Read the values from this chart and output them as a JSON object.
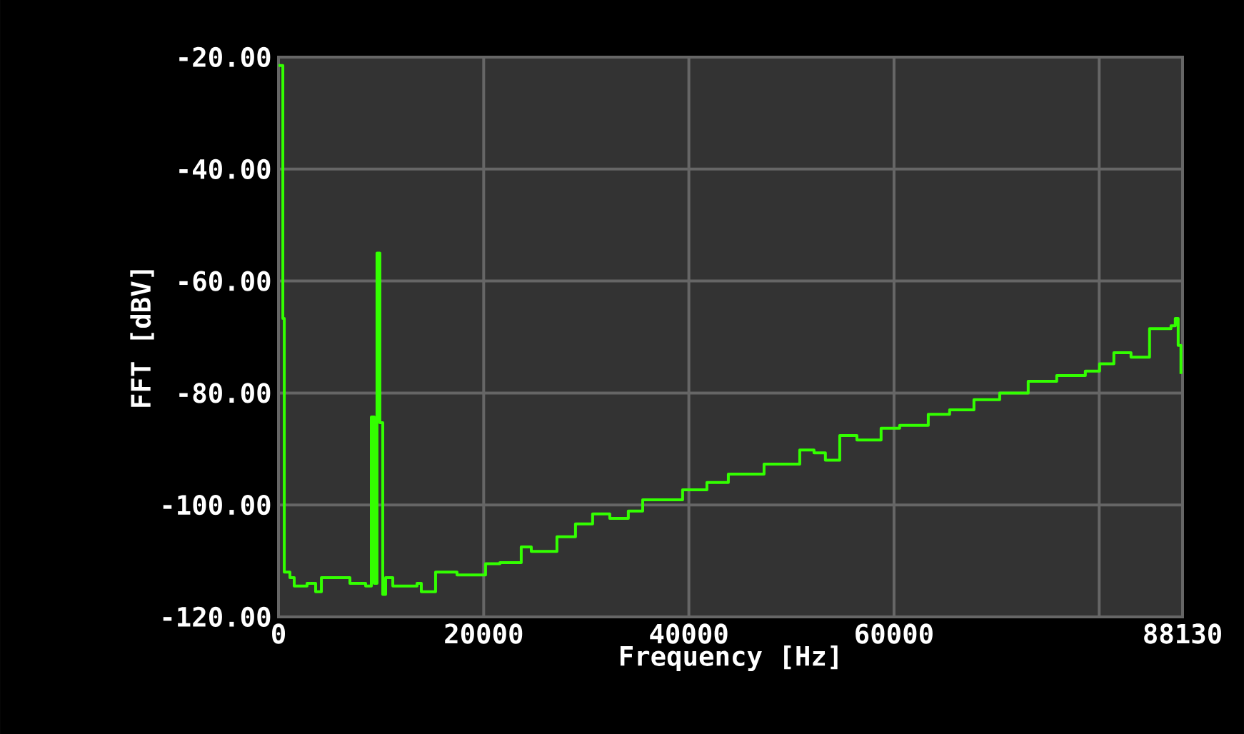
{
  "chart_data": {
    "type": "step",
    "xlabel": "Frequency [Hz]",
    "ylabel": "FFT [dBV]",
    "xlim": [
      0,
      88130
    ],
    "ylim": [
      -120,
      -20
    ],
    "xticks": [
      0,
      20000,
      40000,
      60000,
      {
        "value": 80000,
        "label": null
      },
      88130
    ],
    "yticks": [
      {
        "value": -120,
        "label": "-120.00"
      },
      {
        "value": -100,
        "label": "-100.00"
      },
      {
        "value": -80,
        "label": "-80.00"
      },
      {
        "value": -60,
        "label": "-60.00"
      },
      {
        "value": -40,
        "label": "-40.00"
      },
      {
        "value": -20,
        "label": "-20.00"
      }
    ],
    "grid": true,
    "marker": "none",
    "line_style": "solid",
    "series": [
      {
        "color": "#33ff00",
        "x": [
          0,
          420,
          560,
          1110,
          1530,
          2780,
          3620,
          4180,
          5570,
          6960,
          8490,
          9050,
          9330,
          9600,
          9880,
          10160,
          10440,
          11140,
          13500,
          13920,
          15310,
          17400,
          20180,
          21580,
          23660,
          24640,
          27140,
          28950,
          30620,
          32290,
          34100,
          35500,
          36890,
          39390,
          41760,
          43850,
          47330,
          50810,
          52200,
          53310,
          54710,
          56380,
          58740,
          60550,
          63340,
          65420,
          67790,
          70300,
          73080,
          75860,
          78650,
          80040,
          81430,
          83100,
          84910,
          87000,
          87420,
          87700,
          87970
        ],
        "values": [
          -21.5,
          -66.7,
          -112,
          -113,
          -114.5,
          -114,
          -115.5,
          -113,
          -113,
          -114,
          -114.5,
          -84.3,
          -114,
          -55,
          -85.3,
          -116,
          -113,
          -114.5,
          -114,
          -115.5,
          -112,
          -112.5,
          -110.5,
          -110.3,
          -107.5,
          -108.3,
          -105.7,
          -103.4,
          -101.6,
          -102.4,
          -101.1,
          -99.1,
          -99.1,
          -97.3,
          -96,
          -94.5,
          -92.7,
          -90.2,
          -90.7,
          -92,
          -87.6,
          -88.4,
          -86.3,
          -85.8,
          -83.8,
          -83,
          -81.2,
          -80,
          -77.9,
          -76.9,
          -76.1,
          -74.8,
          -72.8,
          -73.6,
          -68.5,
          -68,
          -66.7,
          -71.5,
          -76.6
        ]
      }
    ]
  }
}
